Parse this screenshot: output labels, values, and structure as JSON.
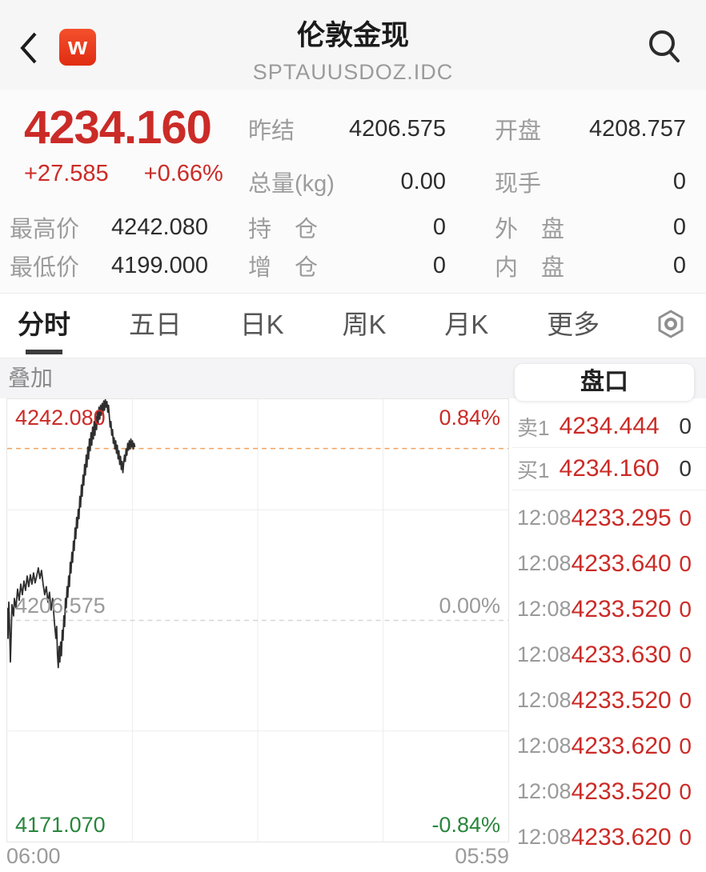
{
  "colors": {
    "up": "#cb2b27",
    "down": "#28863c",
    "last_line_orange": "#f0a35e",
    "line": "#2e2e2e"
  },
  "header": {
    "title": "伦敦金现",
    "subtitle": "SPTAUUSDOZ.IDC",
    "logo_letter": "w"
  },
  "quote": {
    "last": "4234.160",
    "change": "+27.585",
    "change_pct": "+0.66%",
    "prev_settle_label": "昨结",
    "prev_settle": "4206.575",
    "open_label": "开盘",
    "open": "4208.757",
    "volume_label": "总量(kg)",
    "volume": "0.00",
    "cur_vol_label": "现手",
    "cur_vol": "0",
    "high_label": "最高价",
    "high": "4242.080",
    "oi_label": "持　仓",
    "oi": "0",
    "outer_label": "外　盘",
    "outer": "0",
    "low_label": "最低价",
    "low": "4199.000",
    "oi_chg_label": "增　仓",
    "oi_chg": "0",
    "inner_label": "内　盘",
    "inner": "0"
  },
  "tabs": {
    "items": [
      {
        "label": "分时",
        "active": true
      },
      {
        "label": "五日",
        "active": false
      },
      {
        "label": "日K",
        "active": false
      },
      {
        "label": "周K",
        "active": false
      },
      {
        "label": "月K",
        "active": false
      },
      {
        "label": "更多",
        "active": false
      }
    ]
  },
  "overlay_label": "叠加",
  "chart_data": {
    "type": "line",
    "x_axis": {
      "start_label": "06:00",
      "end_label": "05:59"
    },
    "ylim": [
      4171.07,
      4242.08
    ],
    "prev_close": 4206.575,
    "last_price": 4234.16,
    "open": 4208.757,
    "high": 4242.08,
    "low": 4199.0,
    "left_labels": {
      "top": "4242.080",
      "mid": "4206.575",
      "bottom": "4171.070"
    },
    "right_labels": {
      "top": "0.84%",
      "mid": "0.00%",
      "bottom": "-0.84%"
    },
    "points": [
      [
        0,
        4208.6
      ],
      [
        1,
        4203.7
      ],
      [
        2,
        4209.5
      ],
      [
        3,
        4205.6
      ],
      [
        4,
        4199.9
      ],
      [
        5,
        4204.3
      ],
      [
        6,
        4209.1
      ],
      [
        8,
        4207.3
      ],
      [
        9,
        4210.1
      ],
      [
        11,
        4208.6
      ],
      [
        13,
        4211.6
      ],
      [
        15,
        4209.8
      ],
      [
        17,
        4212.4
      ],
      [
        19,
        4210.7
      ],
      [
        21,
        4212.9
      ],
      [
        23,
        4211.4
      ],
      [
        25,
        4213.7
      ],
      [
        27,
        4212.0
      ],
      [
        29,
        4213.9
      ],
      [
        31,
        4212.4
      ],
      [
        33,
        4214.2
      ],
      [
        35,
        4212.6
      ],
      [
        37,
        4213.7
      ],
      [
        39,
        4215.0
      ],
      [
        41,
        4213.3
      ],
      [
        43,
        4214.6
      ],
      [
        45,
        4212.4
      ],
      [
        47,
        4210.7
      ],
      [
        49,
        4212.0
      ],
      [
        51,
        4209.5
      ],
      [
        53,
        4211.1
      ],
      [
        55,
        4208.2
      ],
      [
        57,
        4210.1
      ],
      [
        59,
        4206.5
      ],
      [
        61,
        4203.7
      ],
      [
        62,
        4205.6
      ],
      [
        63,
        4201.1
      ],
      [
        64,
        4199.0
      ],
      [
        65,
        4202.4
      ],
      [
        66,
        4199.9
      ],
      [
        67,
        4203.1
      ],
      [
        68,
        4200.9
      ],
      [
        69,
        4205.0
      ],
      [
        70,
        4203.4
      ],
      [
        71,
        4207.3
      ],
      [
        72,
        4205.6
      ],
      [
        73,
        4210.1
      ],
      [
        74,
        4208.6
      ],
      [
        75,
        4212.0
      ],
      [
        76,
        4210.3
      ],
      [
        77,
        4213.7
      ],
      [
        78,
        4212.0
      ],
      [
        79,
        4215.9
      ],
      [
        80,
        4214.2
      ],
      [
        81,
        4217.5
      ],
      [
        82,
        4215.9
      ],
      [
        83,
        4219.3
      ],
      [
        84,
        4217.8
      ],
      [
        85,
        4221.4
      ],
      [
        86,
        4219.7
      ],
      [
        87,
        4223.1
      ],
      [
        88,
        4221.4
      ],
      [
        89,
        4224.4
      ],
      [
        90,
        4222.9
      ],
      [
        91,
        4226.5
      ],
      [
        92,
        4224.8
      ],
      [
        93,
        4228.3
      ],
      [
        94,
        4226.5
      ],
      [
        95,
        4229.9
      ],
      [
        96,
        4228.3
      ],
      [
        97,
        4231.6
      ],
      [
        98,
        4229.9
      ],
      [
        99,
        4233.1
      ],
      [
        100,
        4231.2
      ],
      [
        101,
        4234.4
      ],
      [
        102,
        4232.5
      ],
      [
        103,
        4235.7
      ],
      [
        104,
        4233.8
      ],
      [
        105,
        4236.7
      ],
      [
        106,
        4234.7
      ],
      [
        107,
        4237.6
      ],
      [
        108,
        4235.7
      ],
      [
        109,
        4238.5
      ],
      [
        110,
        4236.3
      ],
      [
        111,
        4239.3
      ],
      [
        112,
        4237.2
      ],
      [
        113,
        4240.2
      ],
      [
        114,
        4238.2
      ],
      [
        115,
        4240.8
      ],
      [
        116,
        4238.9
      ],
      [
        117,
        4241.1
      ],
      [
        118,
        4239.5
      ],
      [
        119,
        4241.4
      ],
      [
        120,
        4239.8
      ],
      [
        121,
        4241.8
      ],
      [
        122,
        4240.3
      ],
      [
        123,
        4242.0
      ],
      [
        124,
        4240.8
      ],
      [
        125,
        4241.7
      ],
      [
        126,
        4240.0
      ],
      [
        127,
        4241.1
      ],
      [
        128,
        4239.3
      ],
      [
        129,
        4237.6
      ],
      [
        130,
        4238.5
      ],
      [
        131,
        4236.3
      ],
      [
        132,
        4237.2
      ],
      [
        133,
        4235.0
      ],
      [
        134,
        4235.9
      ],
      [
        135,
        4234.1
      ],
      [
        136,
        4235.4
      ],
      [
        137,
        4233.4
      ],
      [
        138,
        4234.7
      ],
      [
        139,
        4232.5
      ],
      [
        140,
        4233.8
      ],
      [
        141,
        4231.6
      ],
      [
        142,
        4232.9
      ],
      [
        143,
        4230.8
      ],
      [
        144,
        4232.1
      ],
      [
        145,
        4230.3
      ],
      [
        146,
        4231.8
      ],
      [
        147,
        4233.1
      ],
      [
        148,
        4232.1
      ],
      [
        149,
        4234.1
      ],
      [
        150,
        4233.1
      ],
      [
        151,
        4235.0
      ],
      [
        152,
        4233.9
      ],
      [
        153,
        4235.4
      ],
      [
        154,
        4234.1
      ],
      [
        155,
        4235.7
      ],
      [
        156,
        4234.4
      ],
      [
        157,
        4235.4
      ],
      [
        158,
        4234.1
      ],
      [
        159,
        4235.0
      ],
      [
        160,
        4234.4
      ]
    ]
  },
  "panel": {
    "title": "盘口",
    "quotes": [
      {
        "label": "卖1",
        "price": "4234.444",
        "vol": "0"
      },
      {
        "label": "买1",
        "price": "4234.160",
        "vol": "0"
      }
    ],
    "ticks": [
      {
        "time": "12:08",
        "price": "4233.295",
        "vol": "0"
      },
      {
        "time": "12:08",
        "price": "4233.640",
        "vol": "0"
      },
      {
        "time": "12:08",
        "price": "4233.520",
        "vol": "0"
      },
      {
        "time": "12:08",
        "price": "4233.630",
        "vol": "0"
      },
      {
        "time": "12:08",
        "price": "4233.520",
        "vol": "0"
      },
      {
        "time": "12:08",
        "price": "4233.620",
        "vol": "0"
      },
      {
        "time": "12:08",
        "price": "4233.520",
        "vol": "0"
      },
      {
        "time": "12:08",
        "price": "4233.620",
        "vol": "0"
      }
    ]
  }
}
